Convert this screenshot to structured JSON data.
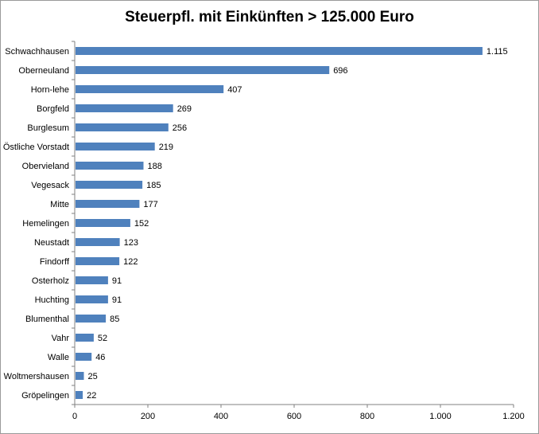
{
  "chart_data": {
    "type": "bar",
    "orientation": "horizontal",
    "title": "Steuerpfl. mit Einkünften > 125.000 Euro",
    "categories": [
      "Schwachhausen",
      "Oberneuland",
      "Horn-lehe",
      "Borgfeld",
      "Burglesum",
      "Östliche Vorstadt",
      "Obervieland",
      "Vegesack",
      "Mitte",
      "Hemelingen",
      "Neustadt",
      "Findorff",
      "Osterholz",
      "Huchting",
      "Blumenthal",
      "Vahr",
      "Walle",
      "Woltmershausen",
      "Gröpelingen"
    ],
    "values": [
      1115,
      696,
      407,
      269,
      256,
      219,
      188,
      185,
      177,
      152,
      123,
      122,
      91,
      91,
      85,
      52,
      46,
      25,
      22
    ],
    "value_labels": [
      "1.115",
      "696",
      "407",
      "269",
      "256",
      "219",
      "188",
      "185",
      "177",
      "152",
      "123",
      "122",
      "91",
      "91",
      "85",
      "52",
      "46",
      "25",
      "22"
    ],
    "x_ticks": [
      0,
      200,
      400,
      600,
      800,
      1000,
      1200
    ],
    "x_tick_labels": [
      "0",
      "200",
      "400",
      "600",
      "800",
      "1.000",
      "1.200"
    ],
    "xlim": [
      0,
      1200
    ],
    "grid": false,
    "legend": "none",
    "bar_color": "#4f81bd"
  }
}
